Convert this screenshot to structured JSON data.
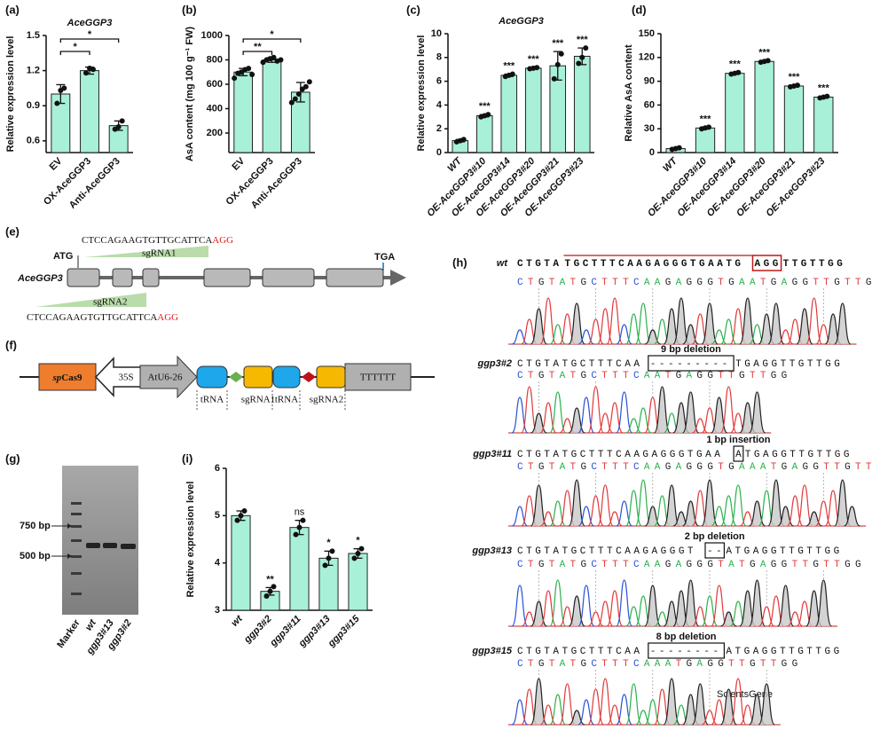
{
  "chart_data": [
    {
      "type": "bar",
      "panel": "(a)",
      "title": "AceGGP3",
      "ylabel": "Relative expression level",
      "categories": [
        "EV",
        "OX-AceGGP3",
        "Anti-AceGGP3"
      ],
      "values": [
        1.0,
        1.2,
        0.73
      ],
      "errors": [
        0.08,
        0.03,
        0.04
      ],
      "points": [
        [
          0.92,
          1.03,
          1.05
        ],
        [
          1.18,
          1.22,
          1.21
        ],
        [
          0.7,
          0.72,
          0.77
        ]
      ],
      "ylim": [
        0.5,
        1.5
      ],
      "yticks": [
        0.6,
        0.9,
        1.2,
        1.5
      ],
      "color": "#a8f0d8",
      "brackets": [
        {
          "from": 0,
          "to": 1,
          "label": "*"
        },
        {
          "from": 0,
          "to": 2,
          "label": "*"
        }
      ]
    },
    {
      "type": "bar",
      "panel": "(b)",
      "ylabel": "AsA content (mg 100 g⁻¹ FW)",
      "categories": [
        "EV",
        "OX-AceGGP3",
        "Anti-AceGGP3"
      ],
      "values": [
        700,
        800,
        535
      ],
      "errors": [
        30,
        20,
        80
      ],
      "points": [
        [
          650,
          690,
          700,
          720,
          730,
          680
        ],
        [
          780,
          800,
          810,
          820,
          790,
          800
        ],
        [
          450,
          480,
          520,
          560,
          580,
          620
        ]
      ],
      "ylim": [
        40,
        1000
      ],
      "yticks": [
        200,
        400,
        600,
        800,
        1000
      ],
      "color": "#a8f0d8",
      "brackets": [
        {
          "from": 0,
          "to": 1,
          "label": "**"
        },
        {
          "from": 0,
          "to": 2,
          "label": "*"
        }
      ]
    },
    {
      "type": "bar",
      "panel": "(c)",
      "title": "AceGGP3",
      "ylabel": "Relative expression level",
      "categories": [
        "WT",
        "OE-AceGGP3#10",
        "OE-AceGGP3#14",
        "OE-AceGGP3#20",
        "OE-AceGGP3#21",
        "OE-AceGGP3#23"
      ],
      "values": [
        1.0,
        3.1,
        6.5,
        7.1,
        7.3,
        8.1
      ],
      "errors": [
        0.1,
        0.1,
        0.1,
        0.05,
        1.2,
        0.7
      ],
      "points": [
        [
          0.9,
          1.0,
          1.1
        ],
        [
          3.0,
          3.1,
          3.2
        ],
        [
          6.4,
          6.5,
          6.6
        ],
        [
          7.05,
          7.1,
          7.15
        ],
        [
          6.2,
          7.4,
          8.3
        ],
        [
          7.5,
          8.0,
          8.8
        ]
      ],
      "significance": [
        null,
        "***",
        "***",
        "***",
        "***",
        "***"
      ],
      "ylim": [
        0,
        10
      ],
      "yticks": [
        0,
        2,
        4,
        6,
        8,
        10
      ],
      "color": "#a8f0d8"
    },
    {
      "type": "bar",
      "panel": "(d)",
      "ylabel": "Relative AsA content",
      "categories": [
        "WT",
        "OE-AceGGP3#10",
        "OE-AceGGP3#14",
        "OE-AceGGP3#20",
        "OE-AceGGP3#21",
        "OE-AceGGP3#23"
      ],
      "values": [
        5,
        31,
        100,
        115,
        84,
        70
      ],
      "errors": [
        1,
        1,
        1,
        1,
        1,
        1
      ],
      "points": [
        [
          4,
          5,
          6
        ],
        [
          30,
          31,
          32
        ],
        [
          99,
          100,
          101
        ],
        [
          114,
          115,
          116
        ],
        [
          83,
          84,
          85
        ],
        [
          69,
          70,
          71
        ]
      ],
      "significance": [
        null,
        "***",
        "***",
        "***",
        "***",
        "***"
      ],
      "ylim": [
        0,
        150
      ],
      "yticks": [
        0,
        30,
        60,
        90,
        120,
        150
      ],
      "color": "#a8f0d8"
    },
    {
      "type": "bar",
      "panel": "(i)",
      "ylabel": "Relative expression level",
      "categories": [
        "wt",
        "ggp3#2",
        "ggp3#11",
        "ggp3#13",
        "ggp3#15"
      ],
      "values": [
        5.0,
        3.4,
        4.75,
        4.1,
        4.2
      ],
      "errors": [
        0.1,
        0.08,
        0.15,
        0.15,
        0.1
      ],
      "points": [
        [
          4.9,
          5.0,
          5.1
        ],
        [
          3.3,
          3.4,
          3.5
        ],
        [
          4.6,
          4.75,
          4.9
        ],
        [
          3.95,
          4.1,
          4.25
        ],
        [
          4.1,
          4.2,
          4.3
        ]
      ],
      "significance": [
        null,
        "**",
        "ns",
        "*",
        "*"
      ],
      "ylim": [
        3,
        6
      ],
      "yticks": [
        3,
        4,
        5,
        6
      ],
      "color": "#a8f0d8"
    }
  ],
  "panel_e": {
    "label": "(e)",
    "gene": "AceGGP3",
    "start_codon": "ATG",
    "stop_codon": "TGA",
    "guides": [
      {
        "name": "sgRNA1",
        "target": "CTCCAGAAGTGTTGCATTCA",
        "pam": "AGG"
      },
      {
        "name": "sgRNA2",
        "target": "CTCCAGAAGTGTTGCATTCA",
        "pam": "AGG"
      }
    ]
  },
  "panel_f": {
    "label": "(f)",
    "cas9": [
      "sp",
      "Cas9"
    ],
    "promoter": "35S",
    "u6": "AtU6-26",
    "elements": [
      "tRNA",
      "sgRNA1",
      "tRNA",
      "sgRNA2"
    ],
    "terminator": "TTTTTT"
  },
  "panel_g": {
    "label": "(g)",
    "markers": [
      "750 bp",
      "500 bp"
    ],
    "lanes": [
      "Marker",
      "wt",
      "ggp3#13",
      "ggp3#2"
    ]
  },
  "panel_h": {
    "label": "(h)",
    "rows": [
      {
        "name": "wt",
        "sequence": [
          "CTGTA",
          "TGCTTTCAAGAGGGTGAATG",
          "AGG",
          "TTGTTGG"
        ],
        "calls": "CTGTATGCTTTCAAGAGGGTGAATGAGGTTGTTGG"
      },
      {
        "name": "ggp3#2",
        "mutation": "9 bp deletion",
        "sequence": [
          "CTGTATGCTTTCAA",
          "---------",
          "TGAGGTTGTTGG"
        ],
        "calls": "CTGTATGCTTTCAATGAGGTTGTTGG"
      },
      {
        "name": "ggp3#11",
        "mutation": "1 bp insertion",
        "sequence": [
          "CTGTATGCTTTCAAGAGGGTGAA",
          "A",
          "TGAGGTTGTTGG"
        ],
        "calls": "CTGTATGCTTTCAAGAGGGTGAAATGAGGTTGTTGG"
      },
      {
        "name": "ggp3#13",
        "mutation": "2 bp deletion",
        "sequence": [
          "CTGTATGCTTTCAAGAGGGT",
          "--",
          "ATGAGGTTGTTGG"
        ],
        "calls": "CTGTATGCTTTCAAGAGGGTATGAGGTTGTTGG"
      },
      {
        "name": "ggp3#15",
        "mutation": "8 bp deletion",
        "sequence": [
          "CTGTATGCTTTCAA",
          "--------",
          "ATGAGGTTGTTGG"
        ],
        "calls": "CTGTATGCTTTCAAATGAGGTTGTTGG"
      }
    ]
  },
  "watermark": "ScientsGene"
}
